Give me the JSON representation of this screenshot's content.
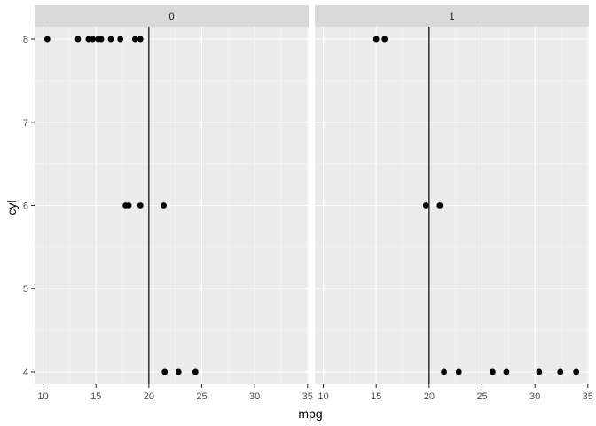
{
  "chart_data": {
    "type": "scatter",
    "xlabel": "mpg",
    "ylabel": "cyl",
    "xlim": [
      9.2,
      35.1
    ],
    "ylim": [
      3.85,
      8.15
    ],
    "x_ticks": [
      10,
      15,
      20,
      25,
      30,
      35
    ],
    "y_ticks": [
      4,
      5,
      6,
      7,
      8
    ],
    "grid": true,
    "vline": 20,
    "panels": [
      {
        "label": "0",
        "points": [
          {
            "x": 10.4,
            "y": 8
          },
          {
            "x": 13.3,
            "y": 8
          },
          {
            "x": 14.3,
            "y": 8
          },
          {
            "x": 14.7,
            "y": 8
          },
          {
            "x": 15.2,
            "y": 8
          },
          {
            "x": 15.5,
            "y": 8
          },
          {
            "x": 16.4,
            "y": 8
          },
          {
            "x": 17.3,
            "y": 8
          },
          {
            "x": 18.7,
            "y": 8
          },
          {
            "x": 19.2,
            "y": 8
          },
          {
            "x": 17.8,
            "y": 6
          },
          {
            "x": 18.1,
            "y": 6
          },
          {
            "x": 19.2,
            "y": 6
          },
          {
            "x": 21.4,
            "y": 6
          },
          {
            "x": 21.5,
            "y": 4
          },
          {
            "x": 22.8,
            "y": 4
          },
          {
            "x": 24.4,
            "y": 4
          }
        ]
      },
      {
        "label": "1",
        "points": [
          {
            "x": 15.0,
            "y": 8
          },
          {
            "x": 15.8,
            "y": 8
          },
          {
            "x": 19.7,
            "y": 6
          },
          {
            "x": 21.0,
            "y": 6
          },
          {
            "x": 21.4,
            "y": 4
          },
          {
            "x": 22.8,
            "y": 4
          },
          {
            "x": 26.0,
            "y": 4
          },
          {
            "x": 27.3,
            "y": 4
          },
          {
            "x": 30.4,
            "y": 4
          },
          {
            "x": 32.4,
            "y": 4
          },
          {
            "x": 33.9,
            "y": 4
          }
        ]
      }
    ]
  }
}
